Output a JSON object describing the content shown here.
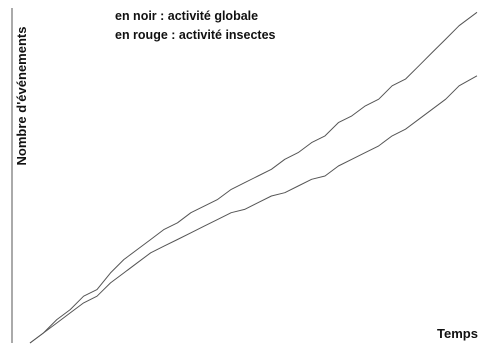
{
  "chart_data": {
    "type": "line",
    "title": "",
    "xlabel": "Temps",
    "ylabel": "Nombre d'événements",
    "xlim": [
      0,
      100
    ],
    "ylim": [
      0,
      100
    ],
    "grid": false,
    "annotations": [
      "en noir : activité globale",
      "en rouge : activité insectes"
    ],
    "series": [
      {
        "color": "#555555",
        "x": [
          0,
          3,
          6,
          9,
          12,
          15,
          18,
          21,
          24,
          27,
          30,
          33,
          36,
          39,
          42,
          45,
          48,
          51,
          54,
          57,
          60,
          63,
          66,
          69,
          72,
          75,
          78,
          81,
          84,
          87,
          90,
          93,
          96,
          100
        ],
        "y": [
          0,
          3,
          7,
          10,
          14,
          16,
          21,
          25,
          28,
          31,
          34,
          36,
          39,
          41,
          43,
          46,
          48,
          50,
          52,
          55,
          57,
          60,
          62,
          66,
          68,
          71,
          73,
          77,
          79,
          83,
          87,
          91,
          95,
          99
        ]
      },
      {
        "color": "#555555",
        "x": [
          0,
          3,
          6,
          9,
          12,
          15,
          18,
          21,
          24,
          27,
          30,
          33,
          36,
          39,
          42,
          45,
          48,
          51,
          54,
          57,
          60,
          63,
          66,
          69,
          72,
          75,
          78,
          81,
          84,
          87,
          90,
          93,
          96,
          100
        ],
        "y": [
          0,
          3,
          6,
          9,
          12,
          14,
          18,
          21,
          24,
          27,
          29,
          31,
          33,
          35,
          37,
          39,
          40,
          42,
          44,
          45,
          47,
          49,
          50,
          53,
          55,
          57,
          59,
          62,
          64,
          67,
          70,
          73,
          77,
          80
        ]
      }
    ]
  }
}
